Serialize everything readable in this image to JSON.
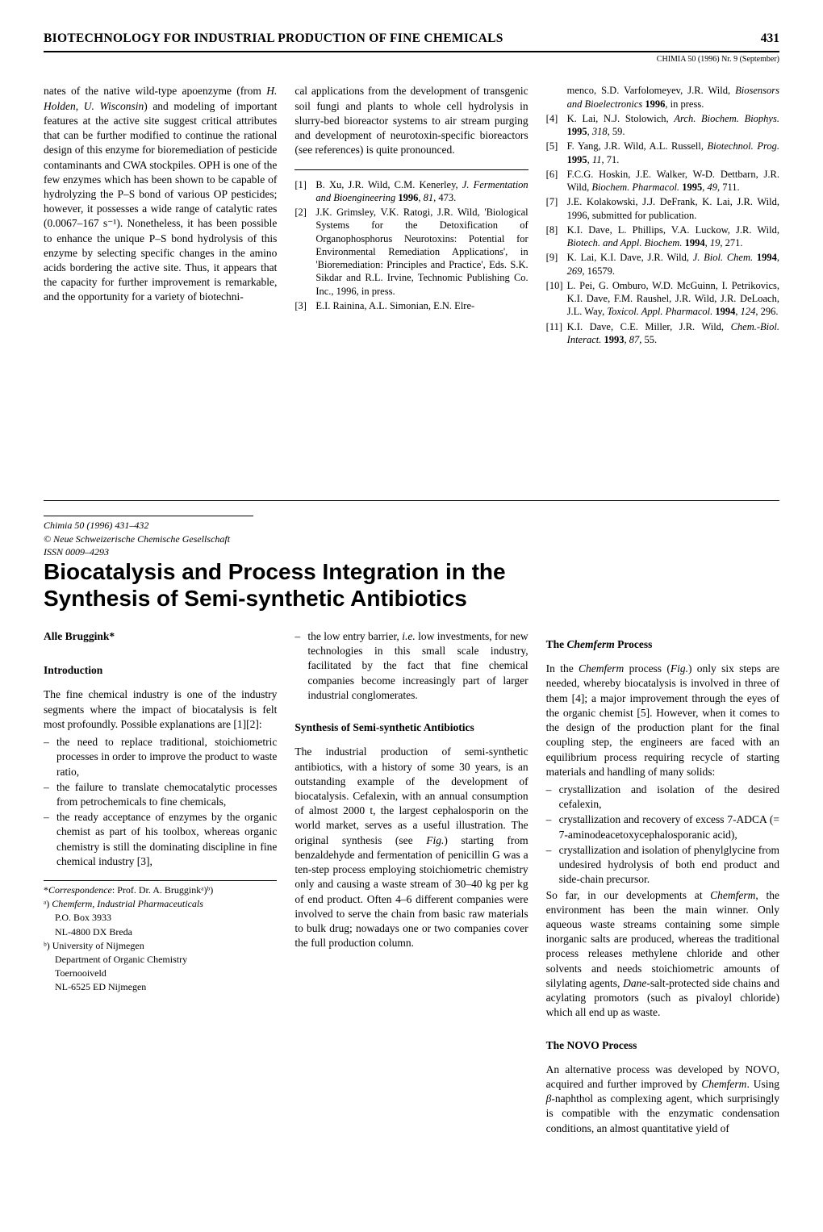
{
  "header": {
    "running_title": "BIOTECHNOLOGY FOR INDUSTRIAL PRODUCTION OF FINE CHEMICALS",
    "page_number": "431",
    "issue_line": "CHIMIA 50 (1996) Nr. 9 (September)"
  },
  "top_article": {
    "col1_para": "nates of the native wild-type apoenzyme (from H. Holden, U. Wisconsin) and modeling of important features at the active site suggest critical attributes that can be further modified to continue the rational design of this enzyme for bioremediation of pesticide contaminants and CWA stockpiles. OPH is one of the few enzymes which has been shown to be capable of hydrolyzing the P–S bond of various OP pesticides; however, it possesses a wide range of catalytic rates (0.0067–167 s⁻¹). Nonetheless, it has been possible to enhance the unique P–S bond hydrolysis of this enzyme by selecting specific changes in the amino acids bordering the active site. Thus, it appears that the capacity for further improvement is remarkable, and the opportunity for a variety of biotechni-",
    "col2_para": "cal applications from the development of transgenic soil fungi and plants to whole cell hydrolysis in slurry-bed bioreactor systems to air stream purging and development of neurotoxin-specific bioreactors (see references) is quite pronounced.",
    "refs": [
      {
        "n": "[1]",
        "html": "B. Xu, J.R. Wild, C.M. Kenerley, <i>J. Fermentation and Bioengineering</i> <b>1996</b>, <i>81</i>, 473."
      },
      {
        "n": "[2]",
        "html": "J.K. Grimsley, V.K. Ratogi, J.R. Wild, 'Biological Systems for the Detoxification of Organophosphorus Neurotoxins: Potential for Environmental Remediation Applications', in 'Bioremediation: Principles and Practice', Eds. S.K. Sikdar and R.L. Irvine, Technomic Publishing Co. Inc., 1996, in press."
      },
      {
        "n": "[3]",
        "html": "E.I. Rainina, A.L. Simonian, E.N. Elre-"
      },
      {
        "n": "",
        "html": "menco, S.D. Varfolomeyev, J.R. Wild, <i>Biosensors and Bioelectronics</i> <b>1996</b>, in press."
      },
      {
        "n": "[4]",
        "html": "K. Lai, N.J. Stolowich, <i>Arch. Biochem. Biophys.</i> <b>1995</b>, <i>318</i>, 59."
      },
      {
        "n": "[5]",
        "html": "F. Yang, J.R. Wild, A.L. Russell, <i>Biotechnol. Prog.</i> <b>1995</b>, <i>11</i>, 71."
      },
      {
        "n": "[6]",
        "html": "F.C.G. Hoskin, J.E. Walker, W-D. Dettbarn, J.R. Wild, <i>Biochem. Pharmacol.</i> <b>1995</b>, <i>49</i>, 711."
      },
      {
        "n": "[7]",
        "html": "J.E. Kolakowski, J.J. DeFrank, K. Lai, J.R. Wild, 1996, submitted for publication."
      },
      {
        "n": "[8]",
        "html": "K.I. Dave, L. Phillips, V.A. Luckow, J.R. Wild, <i>Biotech. and Appl. Biochem.</i> <b>1994</b>, <i>19</i>, 271."
      },
      {
        "n": "[9]",
        "html": "K. Lai, K.I. Dave, J.R. Wild, <i>J. Biol. Chem.</i> <b>1994</b>, <i>269</i>, 16579."
      },
      {
        "n": "[10]",
        "html": "L. Pei, G. Omburo, W.D. McGuinn, I. Petrikovics, K.I. Dave, F.M. Raushel, J.R. Wild, J.R. DeLoach, J.L. Way, <i>Toxicol. Appl. Pharmacol.</i> <b>1994</b>, <i>124</i>, 296."
      },
      {
        "n": "[11]",
        "html": "K.I. Dave, C.E. Miller, J.R. Wild, <i>Chem.-Biol. Interact.</i> <b>1993</b>, <i>87</i>, 55."
      }
    ]
  },
  "article": {
    "chimia": "Chimia 50 (1996) 431–432",
    "copyright": "© Neue Schweizerische Chemische Gesellschaft",
    "issn": "ISSN 0009–4293",
    "title": "Biocatalysis and Process Integration in the Synthesis of Semi-synthetic Antibiotics",
    "author": "Alle Bruggink*",
    "intro_head": "Introduction",
    "intro_para": "The fine chemical industry is one of the industry segments where the impact of biocatalysis is felt most profoundly. Possible explanations are [1][2]:",
    "intro_bullets": [
      "the need to replace traditional, stoichiometric processes in order to improve the product to waste ratio,",
      "the failure to translate chemocatalytic processes from petrochemicals to fine chemicals,",
      "the ready acceptance of enzymes by the organic chemist as part of his toolbox, whereas organic chemistry is still the dominating discipline in fine chemical industry [3],"
    ],
    "col2_bullet": "the low entry barrier, i.e. low investments, for new technologies in this small scale industry, facilitated by the fact that fine chemical companies become increasingly part of larger industrial conglomerates.",
    "synth_head": "Synthesis of Semi-synthetic Antibiotics",
    "synth_para": "The industrial production of semi-synthetic antibiotics, with a history of some 30 years, is an outstanding example of the development of biocatalysis. Cefalexin, with an annual consumption of almost 2000 t, the largest cephalosporin on the world market, serves as a useful illustration. The original synthesis (see Fig.) starting from benzaldehyde and fermentation of penicillin G was a ten-step process employing stoichiometric chemistry only and causing a waste stream of 30–40 kg per kg of end product. Often 4–6 different companies were involved to serve the chain from basic raw materials to bulk drug; nowadays one or two companies cover the full production column.",
    "chemferm_head": "The Chemferm Process",
    "chemferm_p1": "In the Chemferm process (Fig.) only six steps are needed, whereby biocatalysis is involved in three of them [4]; a major improvement through the eyes of the organic chemist [5]. However, when it comes to the design of the production plant for the final coupling step, the engineers are faced with an equilibrium process requiring recycle of starting materials and handling of many solids:",
    "chemferm_bullets": [
      "crystallization and isolation of the desired cefalexin,",
      "crystallization and recovery of excess 7-ADCA (= 7-aminodeacetoxycephalosporanic acid),",
      "crystallization and isolation of phenylglycine from undesired hydrolysis of both end product and side-chain precursor."
    ],
    "chemferm_p2": "So far, in our developments at Chemferm, the environment has been the main winner. Only aqueous waste streams containing some simple inorganic salts are produced, whereas the traditional process releases methylene chloride and other solvents and needs stoichiometric amounts of silylating agents, Dane-salt-protected side chains and acylating promotors (such as pivaloyl chloride) which all end up as waste.",
    "novo_head": "The NOVO Process",
    "novo_para": "An alternative process was developed by NOVO, acquired and further improved by Chemferm. Using β-naphthol as complexing agent, which surprisingly is compatible with the enzymatic condensation conditions, an almost quantitative yield of",
    "footnotes": {
      "corr": "*Correspondence: Prof. Dr. A. Brugginkᵃ)ᵇ)",
      "a_label": "ᵃ)",
      "a_l1": "Chemferm, Industrial Pharmaceuticals",
      "a_l2": "P.O. Box 3933",
      "a_l3": "NL-4800 DX Breda",
      "b_label": "ᵇ)",
      "b_l1": "University of Nijmegen",
      "b_l2": "Department of Organic Chemistry",
      "b_l3": "Toernooiveld",
      "b_l4": "NL-6525 ED Nijmegen"
    }
  }
}
